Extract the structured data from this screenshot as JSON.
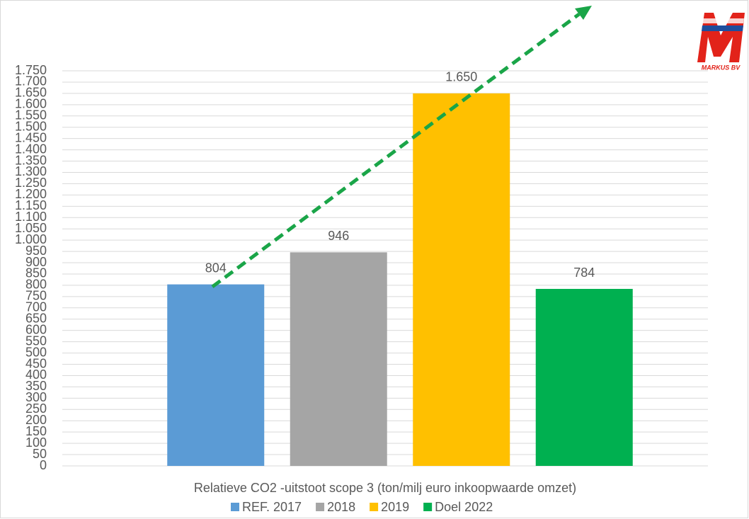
{
  "chart_data": {
    "type": "bar",
    "logo_text": "MARKUS BV",
    "categories": [
      "Relatieve CO2 -uitstoot scope 3 (ton/milj euro inkoopwaarde omzet)"
    ],
    "series": [
      {
        "name": "REF. 2017",
        "color": "#5b9bd5",
        "values": [
          804
        ]
      },
      {
        "name": "2018",
        "color": "#a5a5a5",
        "values": [
          946
        ]
      },
      {
        "name": "2019",
        "color": "#ffc000",
        "values": [
          1650
        ],
        "value_labels": [
          "1.650"
        ]
      },
      {
        "name": "Doel 2022",
        "color": "#00b050",
        "values": [
          784
        ]
      }
    ],
    "ylim": [
      0,
      1750
    ],
    "yticks": [
      0,
      50,
      100,
      150,
      200,
      250,
      300,
      350,
      400,
      450,
      500,
      550,
      600,
      650,
      700,
      750,
      800,
      850,
      900,
      950,
      {
        "value": 1000,
        "label": "1.000"
      },
      {
        "value": 1050,
        "label": "1.050"
      },
      {
        "value": 1100,
        "label": "1.100"
      },
      {
        "value": 1150,
        "label": "1.150"
      },
      {
        "value": 1200,
        "label": "1.200"
      },
      {
        "value": 1250,
        "label": "1.250"
      },
      {
        "value": 1300,
        "label": "1.300"
      },
      {
        "value": 1350,
        "label": "1.350"
      },
      {
        "value": 1400,
        "label": "1.400"
      },
      {
        "value": 1450,
        "label": "1.450"
      },
      {
        "value": 1500,
        "label": "1.500"
      },
      {
        "value": 1550,
        "label": "1.550"
      },
      {
        "value": 1600,
        "label": "1.600"
      },
      {
        "value": 1650,
        "label": "1.650"
      },
      {
        "value": 1700,
        "label": "1.700"
      },
      {
        "value": 1750,
        "label": "1.750"
      }
    ],
    "grid": true
  }
}
